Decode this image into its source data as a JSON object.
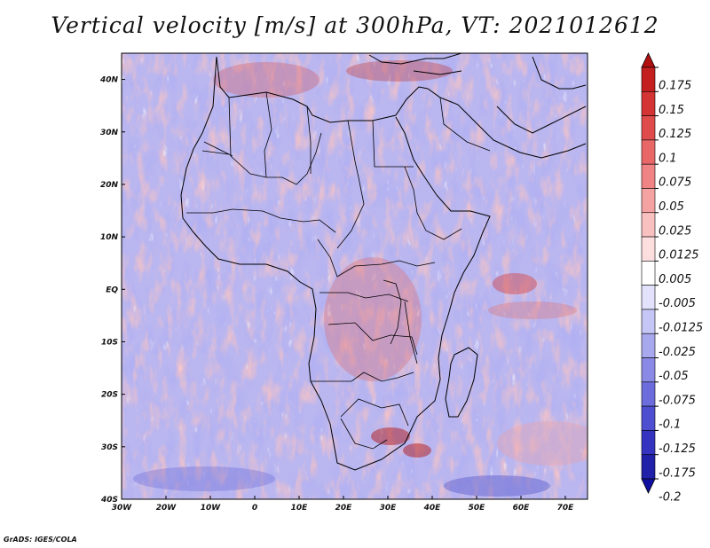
{
  "title": "Vertical velocity [m/s] at 300hPa, VT: 2021012612",
  "credit": "GrADS: IGES/COLA",
  "map": {
    "lon_range": [
      -30,
      75
    ],
    "lat_range": [
      -40,
      45
    ],
    "lon_ticks": [
      "30W",
      "20W",
      "10W",
      "0",
      "10E",
      "20E",
      "30E",
      "40E",
      "50E",
      "60E",
      "70E"
    ],
    "lat_ticks": [
      "40N",
      "30N",
      "20N",
      "10N",
      "EQ",
      "10S",
      "20S",
      "30S",
      "40S"
    ]
  },
  "colorbar": {
    "labels": [
      "0.175",
      "0.15",
      "0.125",
      "0.1",
      "0.075",
      "0.05",
      "0.025",
      "0.0125",
      "0.005",
      "-0.005",
      "-0.0125",
      "-0.025",
      "-0.05",
      "-0.075",
      "-0.1",
      "-0.125",
      "-0.175",
      "-0.2"
    ],
    "colors": [
      "#b01010",
      "#c42020",
      "#d43434",
      "#e04c4c",
      "#e86868",
      "#f08484",
      "#f5a2a2",
      "#f9c0c0",
      "#fcdede",
      "#ffffff",
      "#e2e2fc",
      "#c6c6f6",
      "#a8a8ee",
      "#8a8ae6",
      "#6c6cdc",
      "#4e4ed0",
      "#3434c0",
      "#2020a8",
      "#1010a0"
    ]
  }
}
